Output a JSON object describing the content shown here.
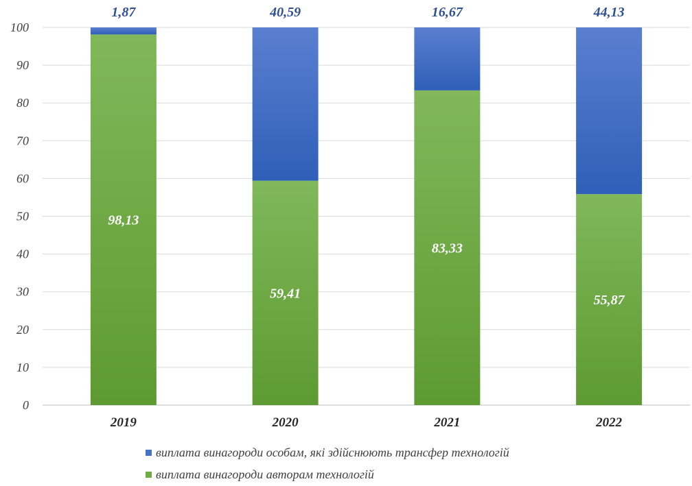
{
  "chart_data": {
    "type": "bar",
    "stacked": true,
    "categories": [
      "2019",
      "2020",
      "2021",
      "2022"
    ],
    "series": [
      {
        "name": "виплата винагороди авторам технологій",
        "values": [
          98.13,
          59.41,
          83.33,
          55.87
        ],
        "labels": [
          "98,13",
          "59,41",
          "83,33",
          "55,87"
        ],
        "color": "#70ad47"
      },
      {
        "name": "виплата винагороди особам, які здійснюють трансфер технологій",
        "values": [
          1.87,
          40.59,
          16.67,
          44.13
        ],
        "labels": [
          "1,87",
          "40,59",
          "16,67",
          "44,13"
        ],
        "color": "#4472c4"
      }
    ],
    "ylim": [
      0,
      100
    ],
    "yticks": [
      0,
      10,
      20,
      30,
      40,
      50,
      60,
      70,
      80,
      90,
      100
    ],
    "grid": true,
    "legend_position": "bottom",
    "title": "",
    "xlabel": "",
    "ylabel": ""
  }
}
